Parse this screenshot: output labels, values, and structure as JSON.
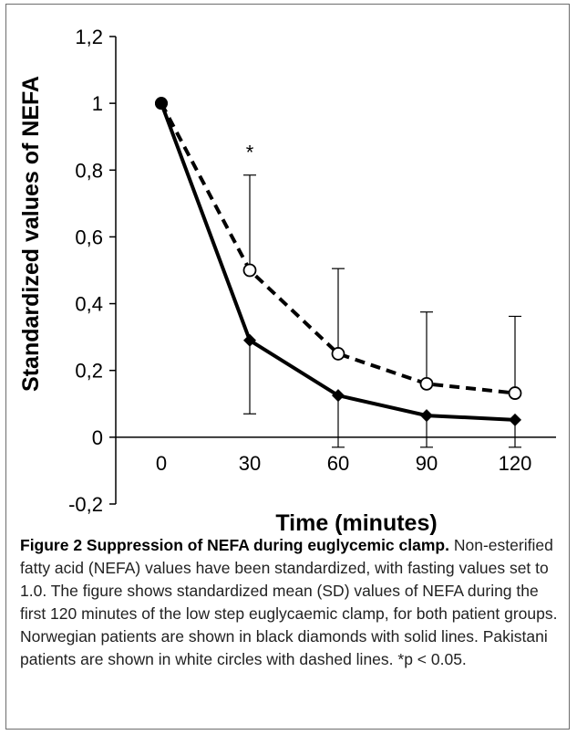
{
  "chart_data": {
    "type": "line",
    "xlabel": "Time (minutes)",
    "ylabel": "Standardized values of NEFA",
    "x": [
      0,
      30,
      60,
      90,
      120
    ],
    "ylim": [
      -0.2,
      1.2
    ],
    "y_ticks": [
      "-0,2",
      "0",
      "0,2",
      "0,4",
      "0,6",
      "0,8",
      "1",
      "1,2"
    ],
    "x_ticks": [
      "0",
      "30",
      "60",
      "90",
      "120"
    ],
    "series": [
      {
        "marker": "black-diamond",
        "line": "solid",
        "values": [
          1.0,
          0.29,
          0.125,
          0.065,
          0.052
        ],
        "error_low": [
          null,
          0.07,
          -0.03,
          -0.03,
          -0.03
        ]
      },
      {
        "marker": "white-circle",
        "line": "dashed",
        "values": [
          1.0,
          0.5,
          0.25,
          0.16,
          0.132
        ],
        "error_high": [
          null,
          0.785,
          0.505,
          0.375,
          0.362
        ]
      }
    ],
    "annotations": [
      {
        "x": 30,
        "y": 0.87,
        "text": "*"
      }
    ],
    "grid": false
  },
  "caption": {
    "title": "Figure 2 Suppression of NEFA during euglycemic clamp.",
    "body": "Non-esterified fatty acid (NEFA) values have been standardized, with fasting values set to 1.0. The figure shows standardized mean (SD) values of NEFA during the first 120 minutes of the low step euglycaemic clamp, for both patient groups. Norwegian patients are shown in black diamonds with solid lines. Pakistani patients are shown in white circles with dashed lines. *p < 0.05."
  }
}
